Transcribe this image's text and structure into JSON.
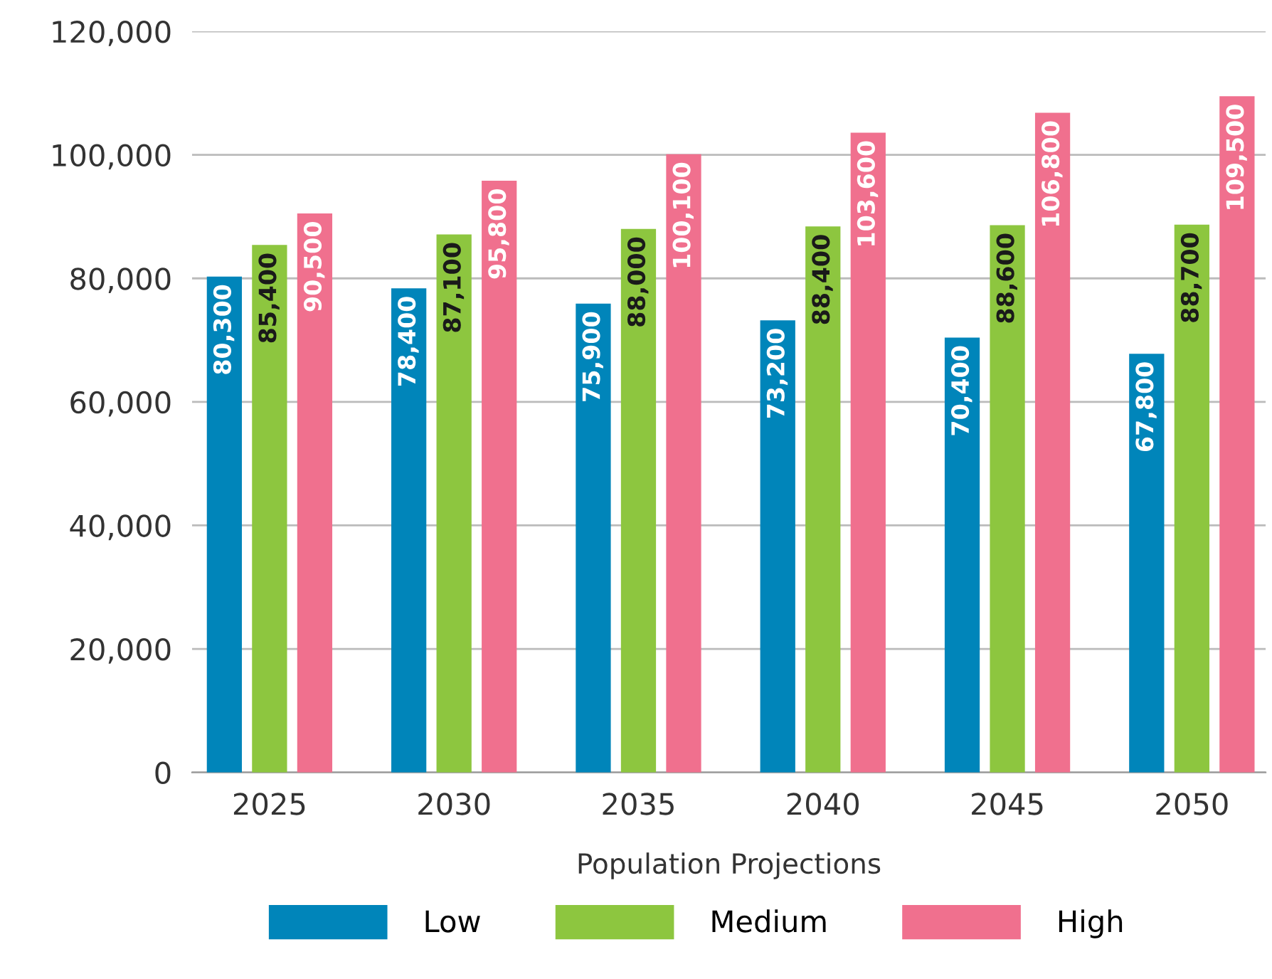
{
  "chart_data": {
    "type": "bar",
    "xlabel": "Population Projections",
    "categories": [
      "2025",
      "2030",
      "2035",
      "2040",
      "2045",
      "2050"
    ],
    "series": [
      {
        "name": "Low",
        "color": "#0085ba",
        "values": [
          80300,
          78400,
          75900,
          73200,
          70400,
          67800
        ],
        "value_labels": [
          "80,300",
          "78,400",
          "75,900",
          "73,200",
          "70,400",
          "67,800"
        ]
      },
      {
        "name": "Medium",
        "color": "#8dc63f",
        "values": [
          85400,
          87100,
          88000,
          88400,
          88600,
          88700
        ],
        "value_labels": [
          "85,400",
          "87,100",
          "88,000",
          "88,400",
          "88,600",
          "88,700"
        ]
      },
      {
        "name": "High",
        "color": "#f0708e",
        "values": [
          90500,
          95800,
          100100,
          103600,
          106800,
          109500
        ],
        "value_labels": [
          "90,500",
          "95,800",
          "100,100",
          "103,600",
          "106,800",
          "109,500"
        ]
      }
    ],
    "ylim": [
      0,
      120000
    ],
    "yticks": [
      {
        "value": 0,
        "label": "0"
      },
      {
        "value": 20000,
        "label": "20,000"
      },
      {
        "value": 40000,
        "label": "40,000"
      },
      {
        "value": 60000,
        "label": "60,000"
      },
      {
        "value": 80000,
        "label": "80,000"
      },
      {
        "value": 100000,
        "label": "100,000"
      },
      {
        "value": 120000,
        "label": "120,000"
      }
    ],
    "grid": "y",
    "legend": "bottom"
  }
}
